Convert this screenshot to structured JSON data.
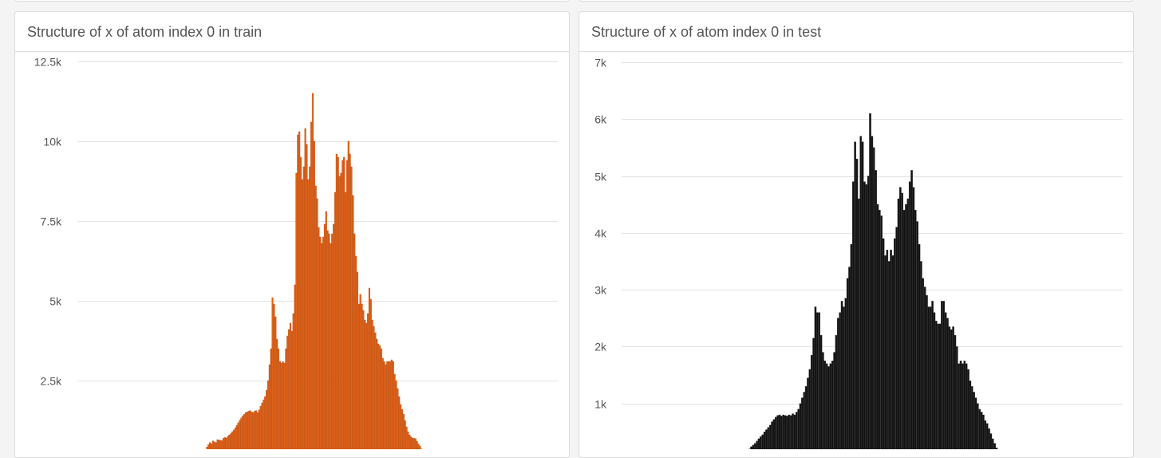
{
  "cards": [
    {
      "title": "Structure of x of atom index 0 in train",
      "chart_data": {
        "type": "bar",
        "title": "Structure of x of atom index 0 in train",
        "xlabel": "",
        "ylabel": "",
        "ylim": [
          0,
          12500
        ],
        "yticks": [
          2500,
          5000,
          7500,
          10000,
          12500
        ],
        "ytick_labels": [
          "2.5k",
          "5k",
          "7.5k",
          "10k",
          "12.5k"
        ],
        "grid": true,
        "bar_color": "#e0621a",
        "bar_edge_color": "#b84c0e",
        "values": [
          150,
          200,
          330,
          420,
          500,
          560,
          520,
          610,
          580,
          560,
          650,
          640,
          630,
          620,
          690,
          720,
          700,
          760,
          800,
          840,
          900,
          950,
          1020,
          1100,
          1180,
          1260,
          1330,
          1400,
          1440,
          1500,
          1520,
          1540,
          1560,
          1520,
          1500,
          1540,
          1560,
          1500,
          1580,
          1700,
          1800,
          1900,
          2000,
          2200,
          2500,
          3000,
          3500,
          5100,
          4900,
          4500,
          3800,
          3500,
          3100,
          3050,
          3100,
          3050,
          3500,
          3900,
          4100,
          4300,
          4050,
          4600,
          5500,
          9000,
          10200,
          10300,
          9500,
          8800,
          9200,
          10400,
          9900,
          8800,
          9200,
          10600,
          11500,
          10000,
          8600,
          8200,
          7300,
          7000,
          6800,
          7000,
          7400,
          7800,
          7200,
          7100,
          6800,
          7100,
          7400,
          8400,
          9600,
          9500,
          8900,
          9000,
          9400,
          9500,
          8400,
          9400,
          10000,
          9600,
          9200,
          8300,
          7100,
          6400,
          5900,
          4900,
          5200,
          4900,
          4700,
          4400,
          4300,
          4600,
          5400,
          5050,
          4400,
          4200,
          4000,
          3800,
          3650,
          3600,
          3500,
          3200,
          3100,
          3000,
          3100,
          3100,
          3100,
          3150,
          3100,
          2700,
          2500,
          2250,
          2000,
          1750,
          1600,
          1450,
          1250,
          1050,
          900,
          800,
          740,
          700,
          690,
          680,
          600,
          520,
          450,
          360,
          260,
          180
        ]
      }
    },
    {
      "title": "Structure of x of atom index 0 in test",
      "chart_data": {
        "type": "bar",
        "title": "Structure of x of atom index 0 in test",
        "xlabel": "",
        "ylabel": "",
        "ylim": [
          0,
          7000
        ],
        "yticks": [
          1000,
          2000,
          3000,
          4000,
          5000,
          6000,
          7000
        ],
        "ytick_labels": [
          "1k",
          "2k",
          "3k",
          "4k",
          "5k",
          "6k",
          "7k"
        ],
        "grid": true,
        "bar_color": "#111111",
        "bar_edge_color": "#333333",
        "values": [
          100,
          130,
          170,
          200,
          240,
          270,
          300,
          340,
          380,
          420,
          450,
          500,
          540,
          580,
          620,
          680,
          720,
          760,
          790,
          800,
          780,
          800,
          790,
          780,
          800,
          790,
          820,
          800,
          850,
          900,
          1000,
          1100,
          1200,
          1300,
          1450,
          1600,
          1850,
          2150,
          2700,
          2600,
          2600,
          2200,
          1900,
          1750,
          1700,
          1650,
          1700,
          1750,
          1900,
          2200,
          2500,
          2600,
          2800,
          2700,
          2850,
          3200,
          3400,
          3800,
          4900,
          5600,
          5300,
          4600,
          5700,
          5600,
          4900,
          4850,
          5000,
          6100,
          5700,
          5500,
          5100,
          4500,
          4400,
          4300,
          3900,
          3600,
          3700,
          3500,
          3700,
          3600,
          3900,
          4100,
          4600,
          4800,
          4700,
          4400,
          4500,
          4600,
          4900,
          5100,
          4800,
          4400,
          4200,
          3800,
          3500,
          3200,
          3050,
          2900,
          2700,
          2700,
          2800,
          2600,
          2450,
          2400,
          2400,
          2800,
          2800,
          2600,
          2500,
          2350,
          2300,
          2350,
          2200,
          2000,
          1700,
          1750,
          1700,
          1750,
          1700,
          1600,
          1400,
          1300,
          1200,
          1100,
          1000,
          900,
          850,
          800,
          700,
          650,
          560,
          470,
          380,
          300,
          220,
          150,
          100
        ]
      }
    }
  ]
}
